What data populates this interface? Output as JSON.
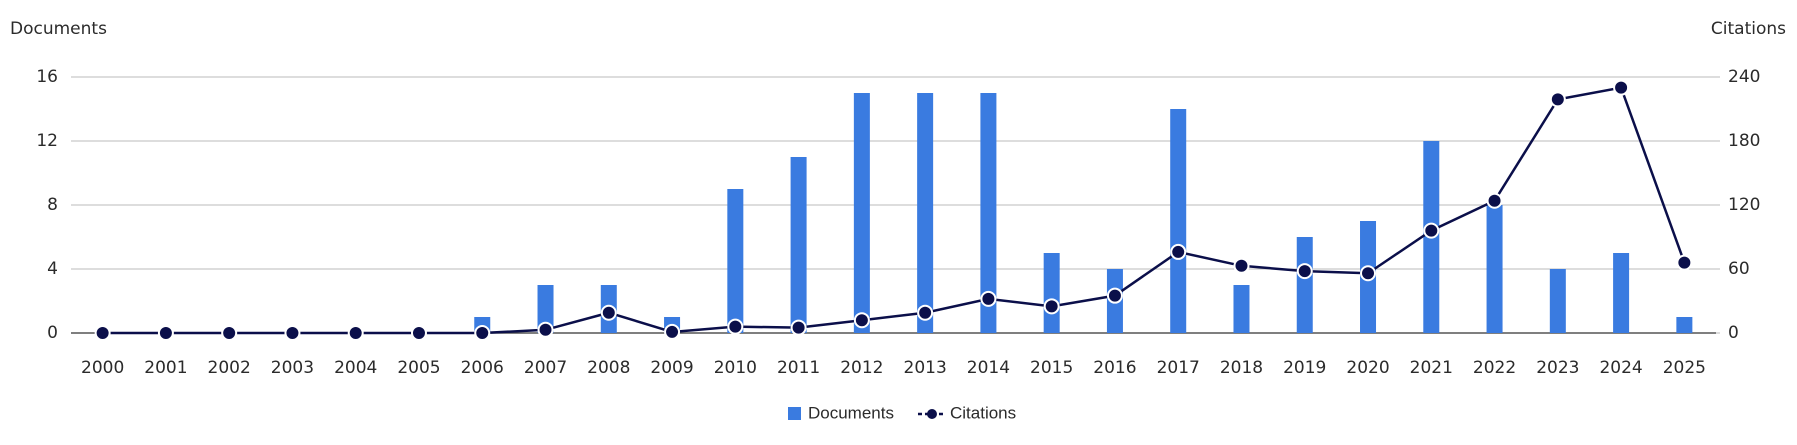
{
  "chart_data": {
    "type": "bar",
    "y_label": "Documents",
    "y2_label": "Citations",
    "categories": [
      "2000",
      "2001",
      "2002",
      "2003",
      "2004",
      "2005",
      "2006",
      "2007",
      "2008",
      "2009",
      "2010",
      "2011",
      "2012",
      "2013",
      "2014",
      "2015",
      "2016",
      "2017",
      "2018",
      "2019",
      "2020",
      "2021",
      "2022",
      "2023",
      "2024",
      "2025"
    ],
    "series": [
      {
        "name": "Documents",
        "type": "bar",
        "color": "#3a7be0",
        "values": [
          0,
          0,
          0,
          0,
          0,
          0,
          1,
          3,
          3,
          1,
          9,
          11,
          15,
          15,
          15,
          5,
          4,
          14,
          3,
          6,
          7,
          12,
          8,
          4,
          5,
          1
        ]
      },
      {
        "name": "Citations",
        "type": "line",
        "axis": "y2",
        "color": "#0b0f4a",
        "values": [
          0,
          0,
          0,
          0,
          0,
          0,
          0,
          3,
          19,
          1,
          6,
          5,
          12,
          19,
          32,
          25,
          35,
          76,
          63,
          58,
          56,
          96,
          124,
          219,
          230,
          66
        ]
      }
    ],
    "ylim": [
      0,
      16
    ],
    "yticks": [
      0,
      4,
      8,
      12,
      16
    ],
    "y2lim": [
      0,
      240
    ],
    "y2ticks": [
      0,
      60,
      120,
      180,
      240
    ],
    "grid": true,
    "legend": "bottom"
  }
}
